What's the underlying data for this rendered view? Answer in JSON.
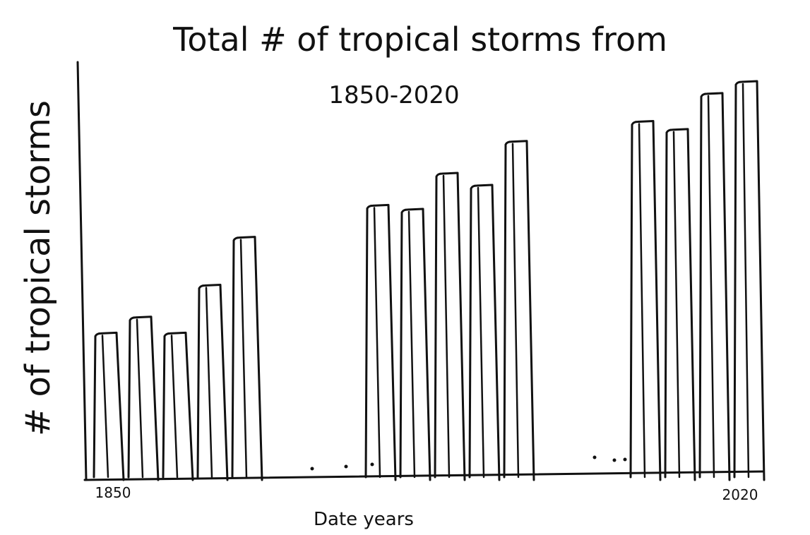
{
  "chart_data": {
    "type": "bar",
    "title": "Total # of tropical storms from",
    "subtitle": "1850-2020",
    "xlabel": "Date years",
    "ylabel": "# of tropical storms",
    "x_tick_labels": [
      "1850",
      "2020"
    ],
    "groups": [
      {
        "values": [
          36,
          40,
          36,
          48,
          60
        ]
      },
      {
        "values": [
          68,
          67,
          76,
          73,
          84
        ]
      },
      {
        "values": [
          89,
          87,
          96,
          99
        ]
      }
    ],
    "ylim": [
      0,
      105
    ],
    "grid": false,
    "color": "#111111"
  }
}
